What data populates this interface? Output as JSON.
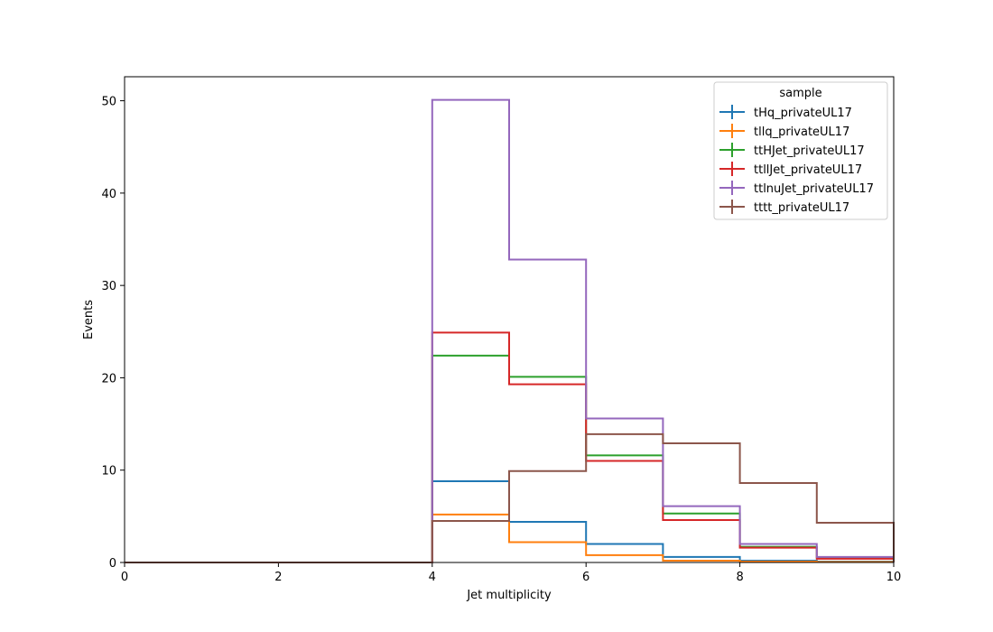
{
  "chart_data": {
    "type": "step",
    "xlabel": "Jet multiplicity",
    "ylabel": "Events",
    "xlim": [
      0,
      10
    ],
    "ylim": [
      0,
      52.6
    ],
    "xticks": [
      0,
      2,
      4,
      6,
      8,
      10
    ],
    "yticks": [
      0,
      10,
      20,
      30,
      40,
      50
    ],
    "grid": false,
    "legend_title": "sample",
    "legend_position": "top-right",
    "bin_edges": [
      0,
      1,
      2,
      3,
      4,
      5,
      6,
      7,
      8,
      9,
      10
    ],
    "series": [
      {
        "name": "tHq_privateUL17",
        "color": "#1f77b4",
        "values": [
          0,
          0,
          0,
          0,
          8.8,
          4.4,
          2.0,
          0.6,
          0.2,
          0.1
        ]
      },
      {
        "name": "tllq_privateUL17",
        "color": "#ff7f0e",
        "values": [
          0,
          0,
          0,
          0,
          5.2,
          2.2,
          0.8,
          0.2,
          0.1,
          0.05
        ]
      },
      {
        "name": "ttHJet_privateUL17",
        "color": "#2ca02c",
        "values": [
          0,
          0,
          0,
          0,
          22.4,
          20.1,
          11.6,
          5.3,
          1.7,
          0.5
        ]
      },
      {
        "name": "ttllJet_privateUL17",
        "color": "#d62728",
        "values": [
          0,
          0,
          0,
          0,
          24.9,
          19.3,
          11.0,
          4.6,
          1.6,
          0.4
        ]
      },
      {
        "name": "ttlnuJet_privateUL17",
        "color": "#9467bd",
        "values": [
          0,
          0,
          0,
          0,
          50.1,
          32.8,
          15.6,
          6.1,
          2.0,
          0.6
        ]
      },
      {
        "name": "tttt_privateUL17",
        "color": "#8c564b",
        "values": [
          0,
          0,
          0,
          0,
          4.5,
          9.9,
          13.9,
          12.9,
          8.6,
          4.3
        ]
      }
    ]
  }
}
